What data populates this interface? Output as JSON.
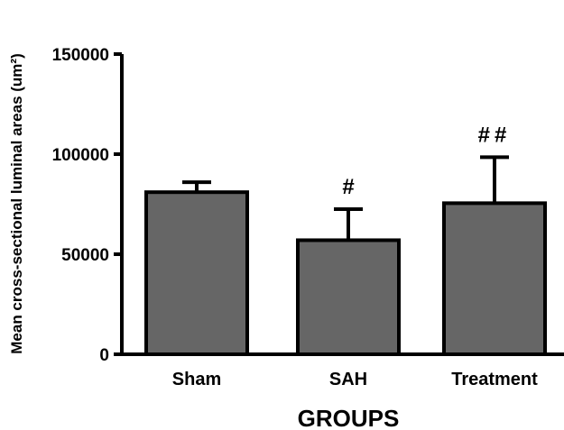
{
  "chart_data": {
    "type": "bar",
    "categories": [
      "Sham",
      "SAH",
      "Treatment"
    ],
    "values": [
      81000,
      57000,
      75500
    ],
    "errors": [
      5000,
      15500,
      23000
    ],
    "annotations": [
      "",
      "#",
      "##"
    ],
    "xlabel": "GROUPS",
    "ylabel": "Mean cross-sectional luminal areas (um²)",
    "ylim": [
      0,
      150000
    ],
    "yticks": [
      0,
      50000,
      100000,
      150000
    ],
    "bar_color": "#666666",
    "grid": false
  }
}
